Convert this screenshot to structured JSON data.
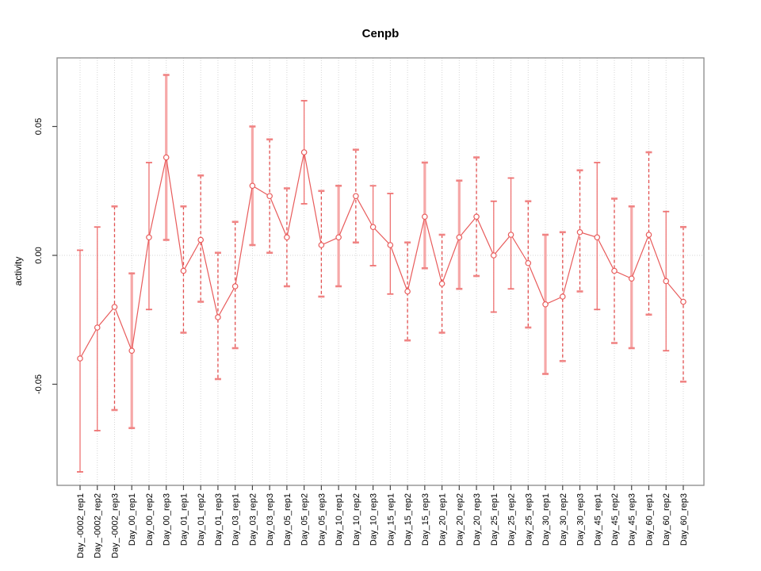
{
  "title": "Cenpb",
  "chart_data": {
    "type": "line",
    "title": "Cenpb",
    "xlabel": "",
    "ylabel": "activity",
    "legend": "none",
    "grid": "vertical dotted line at every category; horizontal dotted line at 0",
    "y_ticks": [
      "0.05",
      "0.00",
      "-0.05"
    ],
    "y_tick_values": [
      0.05,
      0.0,
      -0.05
    ],
    "ylim": [
      -0.0892,
      0.0766
    ],
    "point_marker": "open-circle",
    "colors": {
      "series_line": "#e85b5b",
      "marker": "#e85b5b",
      "bar_solid": "#ee7272",
      "bar_thick": "#f6a8a8",
      "bar_dashed": "#e25050",
      "bar_cap": "#f08484",
      "gridline": "#d6d6d6",
      "plot_border": "#888888",
      "tick": "#444444"
    },
    "categories": [
      "Day_-0002_rep1",
      "Day_-0002_rep2",
      "Day_-0002_rep3",
      "Day_00_rep1",
      "Day_00_rep2",
      "Day_00_rep3",
      "Day_01_rep1",
      "Day_01_rep2",
      "Day_01_rep3",
      "Day_03_rep1",
      "Day_03_rep2",
      "Day_03_rep3",
      "Day_05_rep1",
      "Day_05_rep2",
      "Day_05_rep3",
      "Day_10_rep1",
      "Day_10_rep2",
      "Day_10_rep3",
      "Day_15_rep1",
      "Day_15_rep2",
      "Day_15_rep3",
      "Day_20_rep1",
      "Day_20_rep2",
      "Day_20_rep3",
      "Day_25_rep1",
      "Day_25_rep2",
      "Day_25_rep3",
      "Day_30_rep1",
      "Day_30_rep2",
      "Day_30_rep3",
      "Day_45_rep1",
      "Day_45_rep2",
      "Day_45_rep3",
      "Day_60_rep1",
      "Day_60_rep2",
      "Day_60_rep3"
    ],
    "points": [
      {
        "label": "Day_-0002_rep1",
        "value": -0.04,
        "lo": -0.084,
        "hi": 0.002,
        "bar": "solid"
      },
      {
        "label": "Day_-0002_rep2",
        "value": -0.028,
        "lo": -0.068,
        "hi": 0.011,
        "bar": "solid"
      },
      {
        "label": "Day_-0002_rep3",
        "value": -0.02,
        "lo": -0.06,
        "hi": 0.019,
        "bar": "dashed"
      },
      {
        "label": "Day_00_rep1",
        "value": -0.037,
        "lo": -0.067,
        "hi": -0.007,
        "bar": "thick"
      },
      {
        "label": "Day_00_rep2",
        "value": 0.007,
        "lo": -0.021,
        "hi": 0.036,
        "bar": "solid"
      },
      {
        "label": "Day_00_rep3",
        "value": 0.038,
        "lo": 0.006,
        "hi": 0.07,
        "bar": "thick"
      },
      {
        "label": "Day_01_rep1",
        "value": -0.006,
        "lo": -0.03,
        "hi": 0.019,
        "bar": "dashed"
      },
      {
        "label": "Day_01_rep2",
        "value": 0.006,
        "lo": -0.018,
        "hi": 0.031,
        "bar": "dashed"
      },
      {
        "label": "Day_01_rep3",
        "value": -0.024,
        "lo": -0.048,
        "hi": 0.001,
        "bar": "dashed"
      },
      {
        "label": "Day_03_rep1",
        "value": -0.012,
        "lo": -0.036,
        "hi": 0.013,
        "bar": "dashed"
      },
      {
        "label": "Day_03_rep2",
        "value": 0.027,
        "lo": 0.004,
        "hi": 0.05,
        "bar": "thick"
      },
      {
        "label": "Day_03_rep3",
        "value": 0.023,
        "lo": 0.001,
        "hi": 0.045,
        "bar": "dashed"
      },
      {
        "label": "Day_05_rep1",
        "value": 0.007,
        "lo": -0.012,
        "hi": 0.026,
        "bar": "dashed"
      },
      {
        "label": "Day_05_rep2",
        "value": 0.04,
        "lo": 0.02,
        "hi": 0.06,
        "bar": "solid"
      },
      {
        "label": "Day_05_rep3",
        "value": 0.004,
        "lo": -0.016,
        "hi": 0.025,
        "bar": "dashed"
      },
      {
        "label": "Day_10_rep1",
        "value": 0.007,
        "lo": -0.012,
        "hi": 0.027,
        "bar": "thick"
      },
      {
        "label": "Day_10_rep2",
        "value": 0.023,
        "lo": 0.005,
        "hi": 0.041,
        "bar": "dashed"
      },
      {
        "label": "Day_10_rep3",
        "value": 0.011,
        "lo": -0.004,
        "hi": 0.027,
        "bar": "solid"
      },
      {
        "label": "Day_15_rep1",
        "value": 0.004,
        "lo": -0.015,
        "hi": 0.024,
        "bar": "solid"
      },
      {
        "label": "Day_15_rep2",
        "value": -0.014,
        "lo": -0.033,
        "hi": 0.005,
        "bar": "dashed"
      },
      {
        "label": "Day_15_rep3",
        "value": 0.015,
        "lo": -0.005,
        "hi": 0.036,
        "bar": "thick"
      },
      {
        "label": "Day_20_rep1",
        "value": -0.011,
        "lo": -0.03,
        "hi": 0.008,
        "bar": "dashed"
      },
      {
        "label": "Day_20_rep2",
        "value": 0.007,
        "lo": -0.013,
        "hi": 0.029,
        "bar": "thick"
      },
      {
        "label": "Day_20_rep3",
        "value": 0.015,
        "lo": -0.008,
        "hi": 0.038,
        "bar": "dashed"
      },
      {
        "label": "Day_25_rep1",
        "value": 0.0,
        "lo": -0.022,
        "hi": 0.021,
        "bar": "solid"
      },
      {
        "label": "Day_25_rep2",
        "value": 0.008,
        "lo": -0.013,
        "hi": 0.03,
        "bar": "solid"
      },
      {
        "label": "Day_25_rep3",
        "value": -0.003,
        "lo": -0.028,
        "hi": 0.021,
        "bar": "dashed"
      },
      {
        "label": "Day_30_rep1",
        "value": -0.019,
        "lo": -0.046,
        "hi": 0.008,
        "bar": "thick"
      },
      {
        "label": "Day_30_rep2",
        "value": -0.016,
        "lo": -0.041,
        "hi": 0.009,
        "bar": "dashed"
      },
      {
        "label": "Day_30_rep3",
        "value": 0.009,
        "lo": -0.014,
        "hi": 0.033,
        "bar": "dashed"
      },
      {
        "label": "Day_45_rep1",
        "value": 0.007,
        "lo": -0.021,
        "hi": 0.036,
        "bar": "solid"
      },
      {
        "label": "Day_45_rep2",
        "value": -0.006,
        "lo": -0.034,
        "hi": 0.022,
        "bar": "dashed"
      },
      {
        "label": "Day_45_rep3",
        "value": -0.009,
        "lo": -0.036,
        "hi": 0.019,
        "bar": "thick"
      },
      {
        "label": "Day_60_rep1",
        "value": 0.008,
        "lo": -0.023,
        "hi": 0.04,
        "bar": "dashed"
      },
      {
        "label": "Day_60_rep2",
        "value": -0.01,
        "lo": -0.037,
        "hi": 0.017,
        "bar": "solid"
      },
      {
        "label": "Day_60_rep3",
        "value": -0.018,
        "lo": -0.049,
        "hi": 0.011,
        "bar": "dashed"
      }
    ]
  }
}
